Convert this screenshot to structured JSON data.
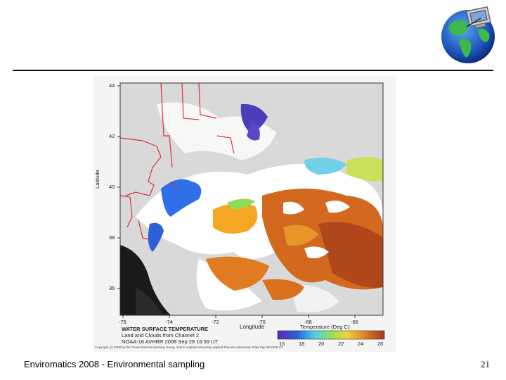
{
  "slide": {
    "footer_text": "Enviromatics 2008 - Environmental sampling",
    "page_number": "21"
  },
  "figure": {
    "y_axis_label": "Latitude",
    "x_axis_label": "Longitude",
    "lat_ticks": [
      "44",
      "42",
      "40",
      "38",
      "36"
    ],
    "lon_ticks": [
      "-76",
      "-74",
      "-72",
      "-70",
      "-68",
      "-66"
    ],
    "title_line1": "WATER SURFACE TEMPERATURE",
    "title_line2": "Land and Clouds from Channel 2",
    "title_line3": "NOAA-16 AVHRR 2008 Sep 29 16:59 UT",
    "colorbar_title": "Temperature (Deg C)",
    "colorbar_ticks": [
      "16",
      "18",
      "20",
      "22",
      "24",
      "26"
    ],
    "copyright": "Copyright (c) 2008 by the Ocean Remote Sensing Group, Johns Hopkins University Applied Physics Laboratory. Data Sep 29 2008 UT"
  },
  "colors": {
    "rule": "#111111",
    "border_lines": "#e0303a",
    "cloud": "#ffffff",
    "land": "#d8d8d8"
  },
  "icons": {
    "logo": "globe-computer-icon"
  }
}
